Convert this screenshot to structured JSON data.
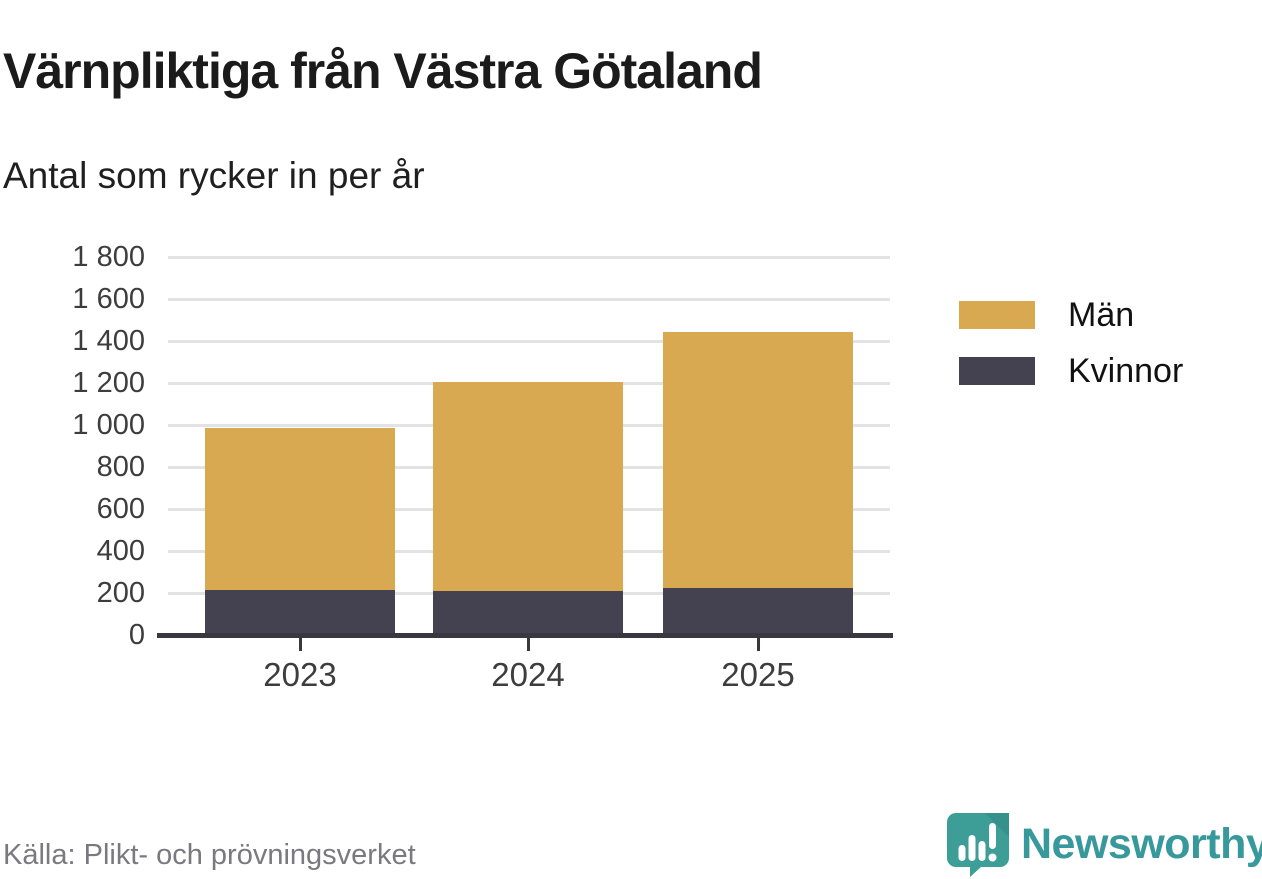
{
  "header": {
    "title": "Värnpliktiga från Västra Götaland",
    "subtitle": "Antal som rycker in per år"
  },
  "chart_data": {
    "type": "bar",
    "stacked": true,
    "title": "Värnpliktiga från Västra Götaland",
    "subtitle": "Antal som rycker in per år",
    "categories": [
      "2023",
      "2024",
      "2025"
    ],
    "series": [
      {
        "name": "Män",
        "color": "#d9a952",
        "values": [
          770,
          995,
          1220
        ]
      },
      {
        "name": "Kvinnor",
        "color": "#444150",
        "values": [
          215,
          210,
          225
        ]
      }
    ],
    "totals": [
      985,
      1205,
      1445
    ],
    "xlabel": "",
    "ylabel": "",
    "ylim": [
      0,
      1800
    ],
    "ytick_step": 200,
    "ytick_labels": [
      "0",
      "200",
      "400",
      "600",
      "800",
      "1 000",
      "1 200",
      "1 400",
      "1 600",
      "1 800"
    ],
    "grid": true,
    "legend_position": "right"
  },
  "legend": {
    "items": [
      {
        "label": "Män",
        "color": "#d9a952"
      },
      {
        "label": "Kvinnor",
        "color": "#444150"
      }
    ]
  },
  "footer": {
    "source": "Källa: Plikt- och prövningsverket",
    "brand": "Newsworthy",
    "brand_color": "#37999b",
    "brand_icon_color": "#3d9d97"
  }
}
